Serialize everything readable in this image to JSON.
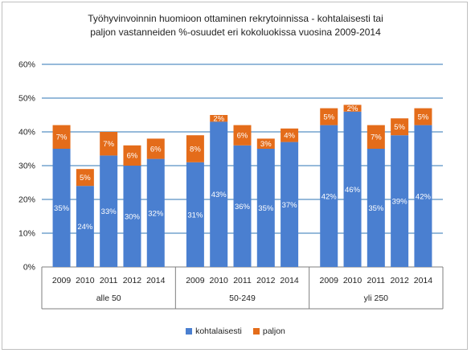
{
  "chart_data": {
    "type": "bar",
    "stacked": true,
    "title": "Työhyvinvoinnin huomioon ottaminen rekrytoinnissa - kohtalaisesti tai paljon vastanneiden %-osuudet eri kokoluokissa vuosina 2009-2014",
    "title_lines": [
      "Työhyvinvoinnin  huomioon ottaminen rekrytoinnissa - kohtalaisesti tai",
      "paljon vastanneiden %-osuudet eri kokoluokissa vuosina 2009-2014"
    ],
    "ylim": [
      0,
      60
    ],
    "yticks": [
      "0%",
      "10%",
      "20%",
      "30%",
      "40%",
      "50%",
      "60%"
    ],
    "grid": true,
    "legend_position": "bottom",
    "groups": [
      {
        "label": "alle 50",
        "years": [
          "2009",
          "2010",
          "2011",
          "2012",
          "2014"
        ]
      },
      {
        "label": "50-249",
        "years": [
          "2009",
          "2010",
          "2011",
          "2012",
          "2014"
        ]
      },
      {
        "label": "yli 250",
        "years": [
          "2009",
          "2010",
          "2011",
          "2012",
          "2014"
        ]
      }
    ],
    "series": [
      {
        "name": "kohtalaisesti",
        "color": "#4a7fd0",
        "values": [
          35,
          24,
          33,
          30,
          32,
          31,
          43,
          36,
          35,
          37,
          42,
          46,
          35,
          39,
          42
        ],
        "labels": [
          "35%",
          "24%",
          "33%",
          "30%",
          "32%",
          "31%",
          "43%",
          "36%",
          "35%",
          "37%",
          "42%",
          "46%",
          "35%",
          "39%",
          "42%"
        ]
      },
      {
        "name": "paljon",
        "color": "#e46c1a",
        "values": [
          7,
          5,
          7,
          6,
          6,
          8,
          2,
          6,
          3,
          4,
          5,
          2,
          7,
          5,
          5
        ],
        "labels": [
          "7%",
          "5%",
          "7%",
          "6%",
          "6%",
          "8%",
          "2%",
          "6%",
          "3%",
          "4%",
          "5%",
          "2%",
          "7%",
          "5%",
          "5%"
        ]
      }
    ],
    "legend": [
      "kohtalaisesti",
      "paljon"
    ]
  }
}
